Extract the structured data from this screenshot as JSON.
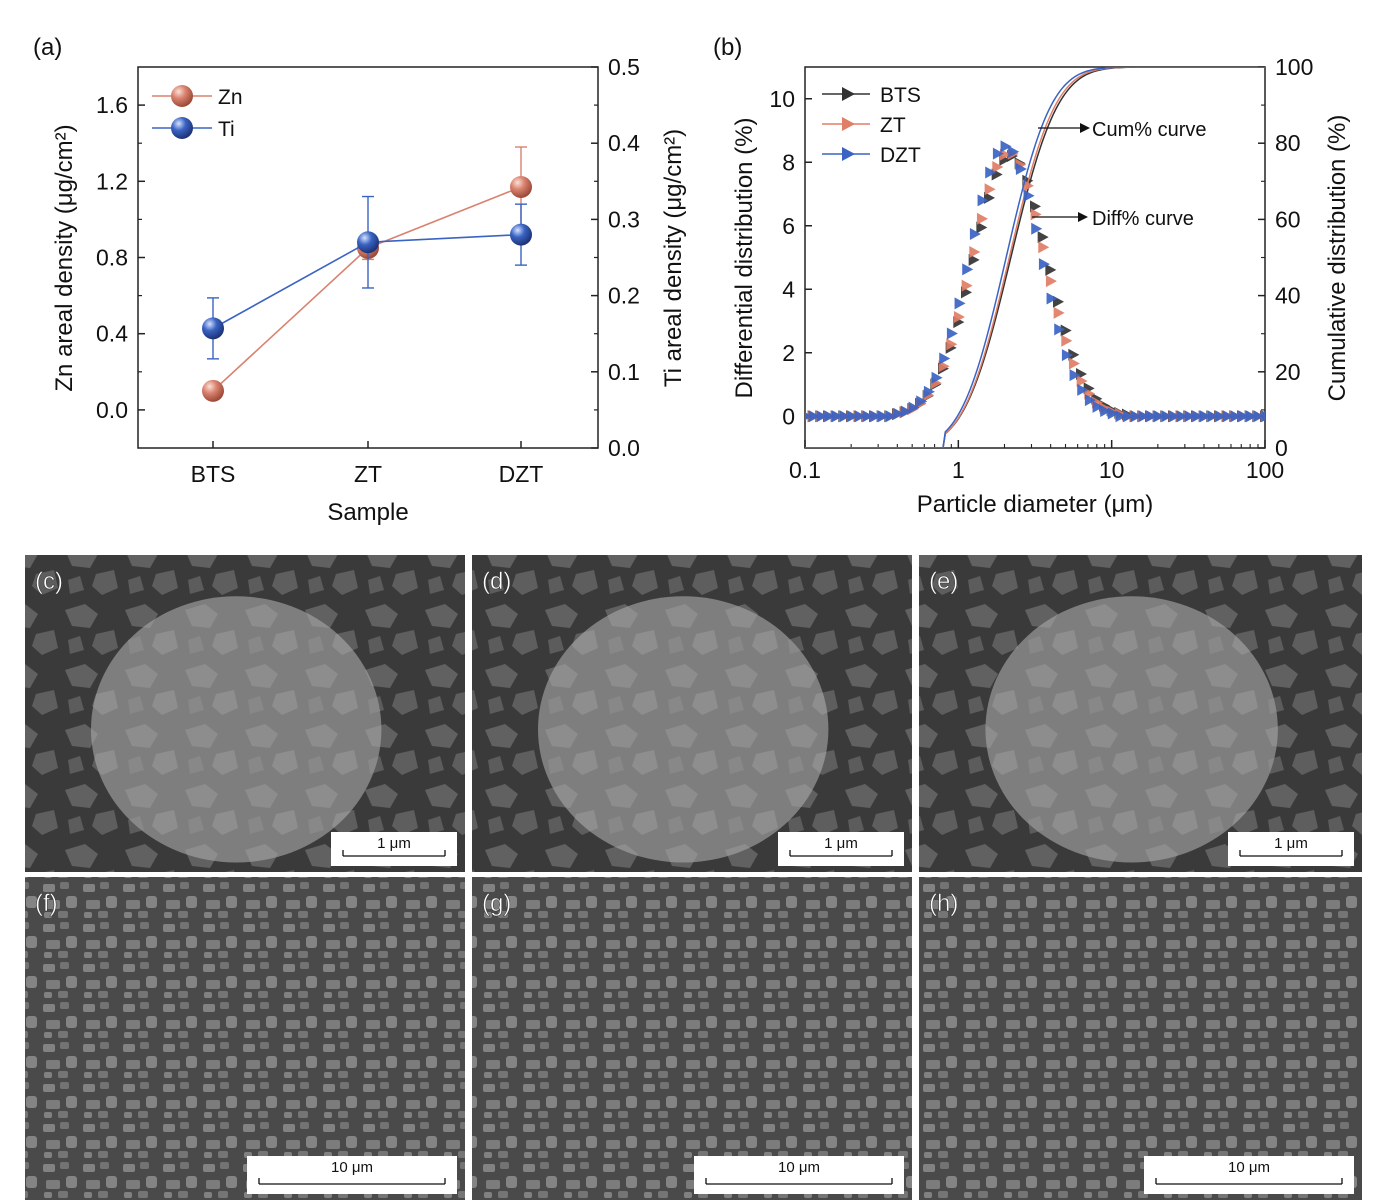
{
  "panels": {
    "a": {
      "label": "(a)"
    },
    "b": {
      "label": "(b)"
    }
  },
  "chart_data": [
    {
      "type": "line",
      "panel": "(a)",
      "categories": [
        "BTS",
        "ZT",
        "DZT"
      ],
      "xlabel": "Sample",
      "ylabel": "Zn areal density (μg/cm²)",
      "ylabel_right": "Ti areal density (μg/cm²)",
      "ylim": [
        -0.2,
        1.8
      ],
      "ylim_right": [
        0.0,
        0.5
      ],
      "yticks": [
        "0.0",
        "0.4",
        "0.8",
        "1.2",
        "1.6"
      ],
      "yticks_right": [
        "0.0",
        "0.1",
        "0.2",
        "0.3",
        "0.4",
        "0.5"
      ],
      "legend_position": "top-left",
      "series": [
        {
          "name": "Zn",
          "axis": "left",
          "color": "#d9826f",
          "values": [
            0.1,
            0.85,
            1.17
          ],
          "errors": [
            0.04,
            0.06,
            0.21
          ]
        },
        {
          "name": "Ti",
          "axis": "right",
          "color": "#3a63c3",
          "values": [
            0.157,
            0.27,
            0.28
          ],
          "errors": [
            0.04,
            0.06,
            0.04
          ]
        }
      ]
    },
    {
      "type": "line",
      "panel": "(b)",
      "xscale": "log",
      "xlabel": "Particle diameter (μm)",
      "ylabel": "Differential distribution (%)",
      "ylabel_right": "Cumulative distribution (%)",
      "xlim": [
        0.1,
        100
      ],
      "ylim": [
        -1,
        11
      ],
      "ylim_right": [
        0,
        100
      ],
      "xticks": [
        "0.1",
        "1",
        "10",
        "100"
      ],
      "yticks": [
        "0",
        "2",
        "4",
        "6",
        "8",
        "10"
      ],
      "yticks_right": [
        "0",
        "20",
        "40",
        "60",
        "80",
        "100"
      ],
      "legend_position": "top-left",
      "annotations": [
        "Cum% curve",
        "Diff% curve"
      ],
      "series": [
        {
          "name": "BTS",
          "color": "#333333",
          "median": 2.2,
          "sigma": 0.24,
          "peak": 8.2
        },
        {
          "name": "ZT",
          "color": "#e07e66",
          "median": 2.15,
          "sigma": 0.235,
          "peak": 8.3
        },
        {
          "name": "DZT",
          "color": "#3a63c3",
          "median": 2.05,
          "sigma": 0.23,
          "peak": 8.5
        }
      ]
    }
  ],
  "sem": [
    {
      "label": "(c)",
      "scale": "1 μm"
    },
    {
      "label": "(d)",
      "scale": "1 μm"
    },
    {
      "label": "(e)",
      "scale": "1 μm"
    },
    {
      "label": "(f)",
      "scale": "10 μm"
    },
    {
      "label": "(g)",
      "scale": "10 μm"
    },
    {
      "label": "(h)",
      "scale": "10 μm"
    }
  ]
}
